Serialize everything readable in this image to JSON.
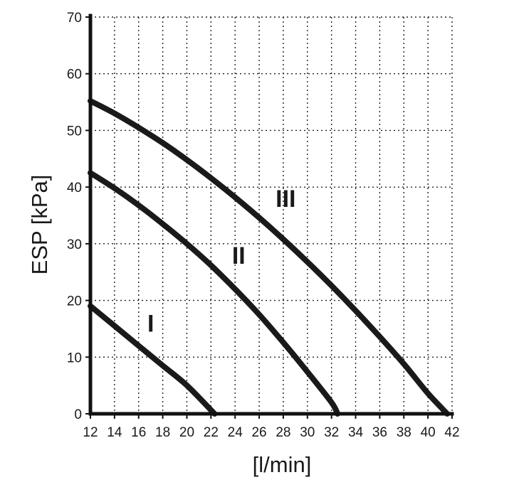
{
  "chart_data": {
    "type": "line",
    "title": "",
    "xlabel": "[l/min]",
    "ylabel": "ESP [kPa]",
    "xlim": [
      12,
      42
    ],
    "ylim": [
      0,
      70
    ],
    "xticks": [
      "12",
      "14",
      "16",
      "18",
      "20",
      "22",
      "24",
      "26",
      "28",
      "30",
      "32",
      "34",
      "36",
      "38",
      "40",
      "42"
    ],
    "yticks": [
      "0",
      "10",
      "20",
      "30",
      "40",
      "50",
      "60",
      "70"
    ],
    "grid": true,
    "series": [
      {
        "name": "I",
        "label_at": [
          17,
          14.5
        ],
        "points": [
          [
            12,
            19
          ],
          [
            14,
            15.5
          ],
          [
            16,
            12
          ],
          [
            18,
            8.5
          ],
          [
            20,
            5
          ],
          [
            22.3,
            0
          ]
        ]
      },
      {
        "name": "II",
        "label_at": [
          24.3,
          26.5
        ],
        "points": [
          [
            12,
            42.5
          ],
          [
            14,
            39.8
          ],
          [
            16,
            36.8
          ],
          [
            18,
            33.5
          ],
          [
            20,
            30
          ],
          [
            22,
            26.2
          ],
          [
            24,
            22
          ],
          [
            26,
            17.5
          ],
          [
            28,
            12.6
          ],
          [
            30,
            7.4
          ],
          [
            32,
            2
          ],
          [
            32.5,
            0
          ]
        ]
      },
      {
        "name": "III",
        "label_at": [
          28.2,
          36.5
        ],
        "points": [
          [
            12,
            55.2
          ],
          [
            14,
            53
          ],
          [
            16,
            50.5
          ],
          [
            18,
            47.8
          ],
          [
            20,
            44.8
          ],
          [
            22,
            41.6
          ],
          [
            24,
            38.2
          ],
          [
            26,
            34.6
          ],
          [
            28,
            30.8
          ],
          [
            30,
            26.8
          ],
          [
            32,
            22.6
          ],
          [
            34,
            18.2
          ],
          [
            36,
            13.6
          ],
          [
            38,
            8.8
          ],
          [
            40,
            3.6
          ],
          [
            41.6,
            0
          ]
        ]
      }
    ],
    "colors": {
      "ink": "#1a1a1a",
      "background": "#ffffff"
    }
  }
}
